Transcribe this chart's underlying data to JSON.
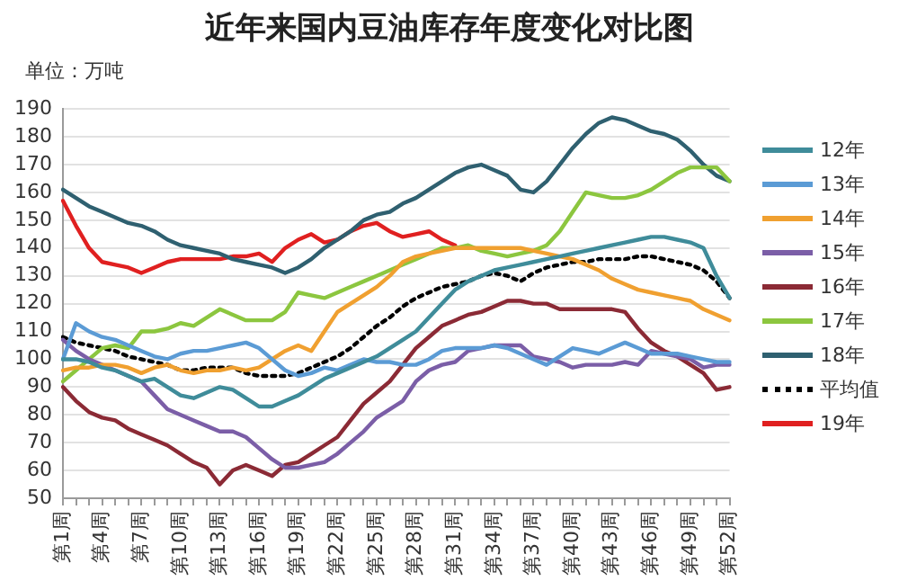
{
  "chart_data": {
    "type": "line",
    "title": "近年来国内豆油库存年度变化对比图",
    "ylabel": "单位：万吨",
    "categories": [
      "第1周",
      null,
      null,
      "第4周",
      null,
      null,
      "第7周",
      null,
      null,
      "第10周",
      null,
      null,
      "第13周",
      null,
      null,
      "第16周",
      null,
      null,
      "第19周",
      null,
      null,
      "第22周",
      null,
      null,
      "第25周",
      null,
      null,
      "第28周",
      null,
      null,
      "第31周",
      null,
      null,
      "第34周",
      null,
      null,
      "第37周",
      null,
      null,
      "第40周",
      null,
      null,
      "第43周",
      null,
      null,
      "第46周",
      null,
      null,
      "第49周",
      null,
      null,
      "第52周"
    ],
    "series": [
      {
        "name": "12年",
        "color": "#3f8c9a",
        "values": [
          100,
          100,
          99,
          97,
          96,
          94,
          92,
          93,
          90,
          87,
          86,
          88,
          90,
          89,
          86,
          83,
          83,
          85,
          87,
          90,
          93,
          95,
          97,
          99,
          101,
          104,
          107,
          110,
          115,
          120,
          125,
          128,
          130,
          132,
          133,
          134,
          135,
          136,
          137,
          138,
          139,
          140,
          141,
          142,
          143,
          144,
          144,
          143,
          142,
          140,
          130,
          122
        ]
      },
      {
        "name": "13年",
        "color": "#5b9bd5",
        "values": [
          100,
          113,
          110,
          108,
          107,
          105,
          103,
          101,
          100,
          102,
          103,
          103,
          104,
          105,
          106,
          104,
          100,
          96,
          94,
          95,
          97,
          96,
          98,
          100,
          99,
          99,
          98,
          98,
          100,
          103,
          104,
          104,
          104,
          105,
          104,
          102,
          100,
          98,
          101,
          104,
          103,
          102,
          104,
          106,
          104,
          102,
          102,
          102,
          101,
          100,
          99,
          99
        ]
      },
      {
        "name": "14年",
        "color": "#f0a030",
        "values": [
          96,
          97,
          97,
          98,
          98,
          97,
          95,
          97,
          98,
          96,
          95,
          96,
          96,
          97,
          96,
          97,
          100,
          103,
          105,
          103,
          110,
          117,
          120,
          123,
          126,
          130,
          135,
          137,
          138,
          139,
          140,
          140,
          140,
          140,
          140,
          140,
          139,
          138,
          137,
          136,
          134,
          132,
          129,
          127,
          125,
          124,
          123,
          122,
          121,
          118,
          116,
          114
        ]
      },
      {
        "name": "15年",
        "color": "#7b5ea7",
        "values": [
          107,
          103,
          100,
          98,
          96,
          94,
          92,
          87,
          82,
          80,
          78,
          76,
          74,
          74,
          72,
          68,
          64,
          61,
          61,
          62,
          63,
          66,
          70,
          74,
          79,
          82,
          85,
          92,
          96,
          98,
          99,
          103,
          104,
          105,
          105,
          105,
          101,
          100,
          99,
          97,
          98,
          98,
          98,
          99,
          98,
          103,
          102,
          101,
          100,
          97,
          98,
          98
        ]
      },
      {
        "name": "16年",
        "color": "#8b2a35",
        "values": [
          90,
          85,
          81,
          79,
          78,
          75,
          73,
          71,
          69,
          66,
          63,
          61,
          55,
          60,
          62,
          60,
          58,
          62,
          63,
          66,
          69,
          72,
          78,
          84,
          88,
          92,
          98,
          104,
          108,
          112,
          114,
          116,
          117,
          119,
          121,
          121,
          120,
          120,
          118,
          118,
          118,
          118,
          118,
          117,
          111,
          106,
          103,
          101,
          98,
          95,
          89,
          90
        ]
      },
      {
        "name": "17年",
        "color": "#8cc63f",
        "values": [
          92,
          96,
          100,
          104,
          105,
          104,
          110,
          110,
          111,
          113,
          112,
          115,
          118,
          116,
          114,
          114,
          114,
          117,
          124,
          123,
          122,
          124,
          126,
          128,
          130,
          132,
          134,
          136,
          138,
          140,
          140,
          141,
          139,
          138,
          137,
          138,
          139,
          141,
          146,
          153,
          160,
          159,
          158,
          158,
          159,
          161,
          164,
          167,
          169,
          169,
          169,
          164
        ]
      },
      {
        "name": "18年",
        "color": "#2f6070",
        "values": [
          161,
          158,
          155,
          153,
          151,
          149,
          148,
          146,
          143,
          141,
          140,
          139,
          138,
          136,
          135,
          134,
          133,
          131,
          133,
          136,
          140,
          143,
          146,
          150,
          152,
          153,
          156,
          158,
          161,
          164,
          167,
          169,
          170,
          168,
          166,
          161,
          160,
          164,
          170,
          176,
          181,
          185,
          187,
          186,
          184,
          182,
          181,
          179,
          175,
          170,
          166,
          164
        ]
      },
      {
        "name": "平均值",
        "color": "#000000",
        "line_style": "dotted",
        "values": [
          108,
          106,
          105,
          104,
          103,
          101,
          100,
          99,
          98,
          96,
          96,
          97,
          97,
          97,
          95,
          94,
          94,
          94,
          95,
          97,
          99,
          101,
          104,
          108,
          112,
          115,
          119,
          122,
          124,
          126,
          127,
          128,
          130,
          131,
          130,
          128,
          131,
          133,
          134,
          135,
          135,
          136,
          136,
          136,
          137,
          137,
          136,
          135,
          134,
          132,
          128,
          122
        ]
      },
      {
        "name": "19年",
        "color": "#e02020",
        "values": [
          157,
          148,
          140,
          135,
          134,
          133,
          131,
          133,
          135,
          136,
          136,
          136,
          136,
          137,
          137,
          138,
          135,
          140,
          143,
          145,
          142,
          143,
          146,
          148,
          149,
          146,
          144,
          145,
          146,
          143,
          141,
          null,
          null,
          null,
          null,
          null,
          null,
          null,
          null,
          null,
          null,
          null,
          null,
          null,
          null,
          null,
          null,
          null,
          null,
          null,
          null,
          null
        ]
      }
    ],
    "ylim": [
      50,
      190
    ],
    "yticks": [
      50,
      60,
      70,
      80,
      90,
      100,
      110,
      120,
      130,
      140,
      150,
      160,
      170,
      180,
      190
    ],
    "grid": "y",
    "legend": "right",
    "marker": "none",
    "line_style": "solid"
  }
}
